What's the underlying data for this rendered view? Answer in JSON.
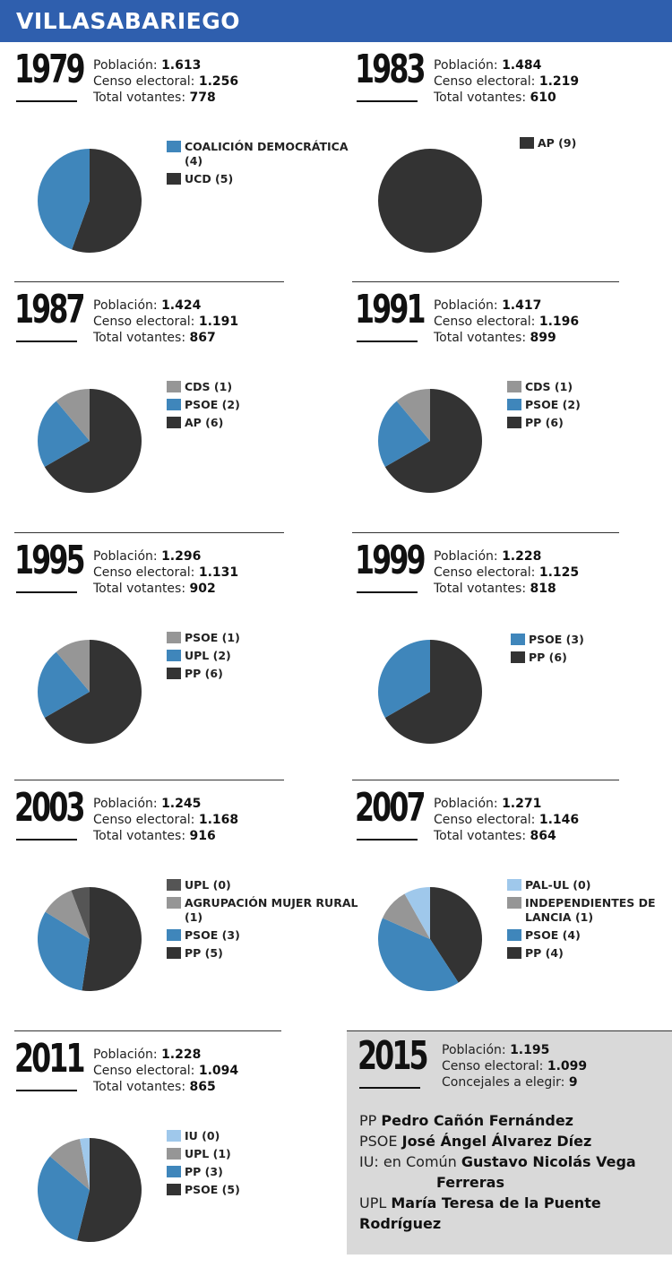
{
  "title": "VILLASABARIEGO",
  "colors": {
    "header": "#2f5fae",
    "light": "#9fc8eb",
    "blue": "#3f86bb",
    "gray": "#969696",
    "dark": "#333333",
    "darkgray": "#555555"
  },
  "labels": {
    "poblacion": "Población:",
    "censo": "Censo electoral:",
    "votantes": "Total votantes:",
    "concejales": "Concejales a elegir:"
  },
  "chart_data": [
    {
      "type": "pie",
      "year": "1979",
      "poblacion": "1.613",
      "censo": "1.256",
      "votantes": "778",
      "slices": [
        {
          "label": "COALICIÓN DEMOCRÁTICA (4)",
          "value": 4,
          "color": "#3f86bb"
        },
        {
          "label": "UCD (5)",
          "value": 5,
          "color": "#333333"
        }
      ]
    },
    {
      "type": "pie",
      "year": "1983",
      "poblacion": "1.484",
      "censo": "1.219",
      "votantes": "610",
      "slices": [
        {
          "label": "AP (9)",
          "value": 9,
          "color": "#333333"
        }
      ]
    },
    {
      "type": "pie",
      "year": "1987",
      "poblacion": "1.424",
      "censo": "1.191",
      "votantes": "867",
      "slices": [
        {
          "label": "CDS (1)",
          "value": 1,
          "color": "#969696"
        },
        {
          "label": "PSOE (2)",
          "value": 2,
          "color": "#3f86bb"
        },
        {
          "label": "AP (6)",
          "value": 6,
          "color": "#333333"
        }
      ]
    },
    {
      "type": "pie",
      "year": "1991",
      "poblacion": "1.417",
      "censo": "1.196",
      "votantes": "899",
      "slices": [
        {
          "label": "CDS (1)",
          "value": 1,
          "color": "#969696"
        },
        {
          "label": "PSOE (2)",
          "value": 2,
          "color": "#3f86bb"
        },
        {
          "label": "PP (6)",
          "value": 6,
          "color": "#333333"
        }
      ]
    },
    {
      "type": "pie",
      "year": "1995",
      "poblacion": "1.296",
      "censo": "1.131",
      "votantes": "902",
      "slices": [
        {
          "label": "PSOE (1)",
          "value": 1,
          "color": "#969696"
        },
        {
          "label": "UPL (2)",
          "value": 2,
          "color": "#3f86bb"
        },
        {
          "label": "PP (6)",
          "value": 6,
          "color": "#333333"
        }
      ]
    },
    {
      "type": "pie",
      "year": "1999",
      "poblacion": "1.228",
      "censo": "1.125",
      "votantes": "818",
      "slices": [
        {
          "label": "PSOE (3)",
          "value": 3,
          "color": "#3f86bb"
        },
        {
          "label": "PP (6)",
          "value": 6,
          "color": "#333333"
        }
      ]
    },
    {
      "type": "pie",
      "year": "2003",
      "poblacion": "1.245",
      "censo": "1.168",
      "votantes": "916",
      "slices": [
        {
          "label": "UPL (0)",
          "value": 0.55,
          "color": "#555555"
        },
        {
          "label": "AGRUPACIÓN MUJER RURAL (1)",
          "value": 1,
          "color": "#969696"
        },
        {
          "label": "PSOE (3)",
          "value": 3,
          "color": "#3f86bb"
        },
        {
          "label": "PP (5)",
          "value": 5,
          "color": "#333333"
        }
      ]
    },
    {
      "type": "pie",
      "year": "2007",
      "poblacion": "1.271",
      "censo": "1.146",
      "votantes": "864",
      "slices": [
        {
          "label": "PAL-UL (0)",
          "value": 0.8,
          "color": "#9fc8eb"
        },
        {
          "label": "INDEPENDIENTES DE LANCIA (1)",
          "value": 1,
          "color": "#969696"
        },
        {
          "label": "PSOE (4)",
          "value": 4,
          "color": "#3f86bb"
        },
        {
          "label": "PP (4)",
          "value": 4,
          "color": "#333333"
        }
      ]
    },
    {
      "type": "pie",
      "year": "2011",
      "poblacion": "1.228",
      "censo": "1.094",
      "votantes": "865",
      "slices": [
        {
          "label": "IU (0)",
          "value": 0.28,
          "color": "#9fc8eb"
        },
        {
          "label": "UPL (1)",
          "value": 1,
          "color": "#969696"
        },
        {
          "label": "PP (3)",
          "value": 3,
          "color": "#3f86bb"
        },
        {
          "label": "PSOE (5)",
          "value": 5,
          "color": "#333333"
        }
      ]
    }
  ],
  "box2015": {
    "year": "2015",
    "poblacion": "1.195",
    "censo": "1.099",
    "concejales": "9",
    "candidates": [
      {
        "party": "PP",
        "name": "Pedro Cañón Fernández",
        "cont": ""
      },
      {
        "party": "PSOE",
        "name": "José Ángel Álvarez Díez",
        "cont": ""
      },
      {
        "party": "IU: en Común",
        "name": "Gustavo Nicolás Vega",
        "cont": "Ferreras"
      },
      {
        "party": "UPL",
        "name": "María Teresa de la Puente Rodríguez",
        "cont": ""
      }
    ]
  }
}
